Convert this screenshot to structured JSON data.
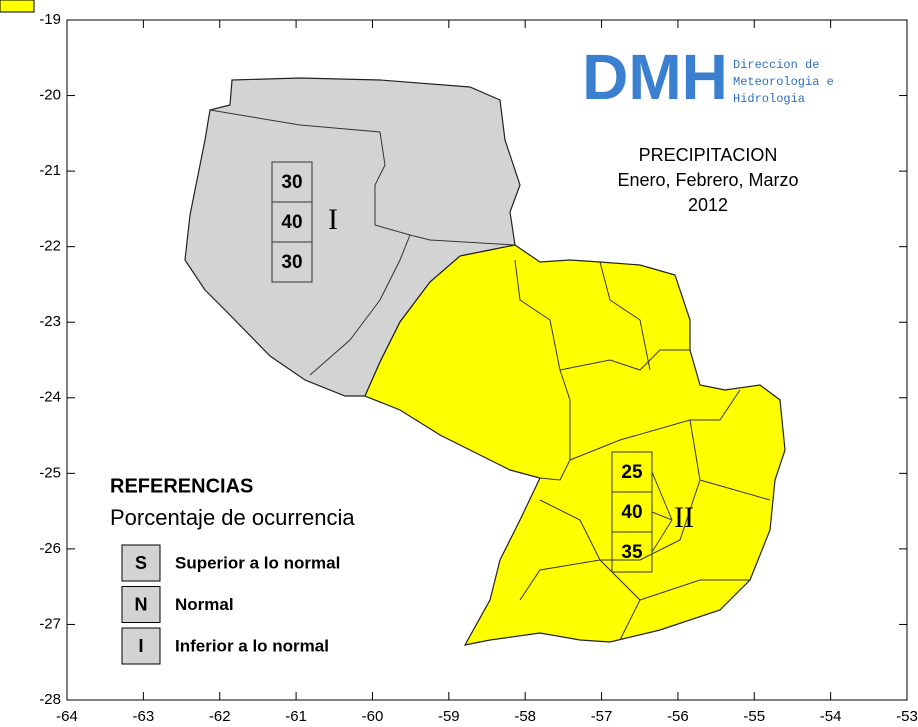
{
  "map": {
    "xlim": [
      -64,
      -53
    ],
    "ylim": [
      -28,
      -19
    ],
    "xticks": [
      -64,
      -63,
      -62,
      -61,
      -60,
      -59,
      -58,
      -57,
      -56,
      -55,
      -54,
      -53
    ],
    "yticks": [
      -28,
      -27,
      -26,
      -25,
      -24,
      -23,
      -22,
      -21,
      -20,
      -19
    ],
    "logo": {
      "letters": "DMH",
      "lines": [
        "Direccion de",
        "Meteorologia e",
        "Hidrologia"
      ]
    },
    "title": [
      "PRECIPITACION",
      "Enero, Febrero, Marzo",
      "2012"
    ],
    "regions": [
      {
        "name": "I",
        "values": [
          30,
          40,
          30
        ],
        "color": "#d3d3d3"
      },
      {
        "name": "II",
        "values": [
          25,
          40,
          35
        ],
        "color": "#ffff00"
      }
    ],
    "legend": {
      "title": "REFERENCIAS",
      "subtitle": "Porcentaje de ocurrencia",
      "items": [
        {
          "key": "S",
          "label": "Superior a lo normal"
        },
        {
          "key": "N",
          "label": "Normal"
        },
        {
          "key": "I",
          "label": "Inferior a lo normal"
        }
      ]
    }
  }
}
